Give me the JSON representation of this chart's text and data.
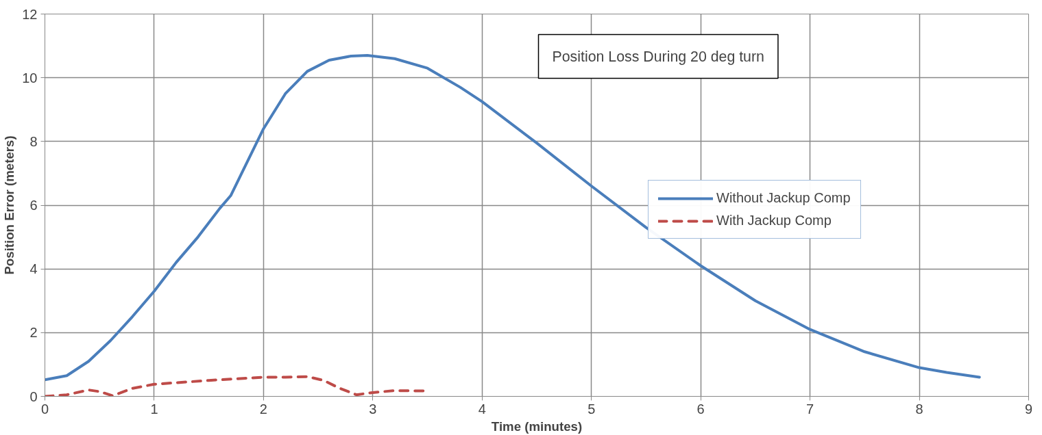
{
  "chart_data": {
    "type": "line",
    "title": "Position Loss During 20 deg turn",
    "xlabel": "Time (minutes)",
    "ylabel": "Position Error (meters)",
    "xlim": [
      0,
      9
    ],
    "xticks": [
      0,
      1,
      2,
      3,
      4,
      5,
      6,
      7,
      8,
      9
    ],
    "ylim": [
      0,
      12
    ],
    "yticks": [
      0,
      2,
      4,
      6,
      8,
      10,
      12
    ],
    "grid": true,
    "legend": "right",
    "series": [
      {
        "name": "Without Jackup Comp",
        "color": "#4a7ebb",
        "line_style": "solid",
        "x": [
          0,
          0.2,
          0.4,
          0.6,
          0.8,
          1,
          1.2,
          1.4,
          1.6,
          1.7,
          1.8,
          2,
          2.2,
          2.4,
          2.6,
          2.8,
          2.95,
          3.2,
          3.5,
          3.8,
          4,
          4.5,
          5,
          5.5,
          6,
          6.5,
          7,
          7.5,
          8,
          8.25,
          8.55
        ],
        "values": [
          0.52,
          0.65,
          1.1,
          1.75,
          2.5,
          3.3,
          4.2,
          5.0,
          5.9,
          6.3,
          7.0,
          8.4,
          9.5,
          10.2,
          10.55,
          10.68,
          10.7,
          10.6,
          10.3,
          9.7,
          9.25,
          7.95,
          6.6,
          5.3,
          4.1,
          3.0,
          2.1,
          1.4,
          0.9,
          0.75,
          0.6
        ]
      },
      {
        "name": "With Jackup Comp",
        "color": "#be4b48",
        "line_style": "dashed",
        "x": [
          0,
          0.2,
          0.4,
          0.5,
          0.62,
          0.8,
          1,
          1.5,
          2,
          2.2,
          2.4,
          2.55,
          2.7,
          2.85,
          3,
          3.2,
          3.5
        ],
        "values": [
          0,
          0.05,
          0.2,
          0.15,
          0.02,
          0.25,
          0.38,
          0.5,
          0.6,
          0.6,
          0.62,
          0.5,
          0.25,
          0.05,
          0.12,
          0.18,
          0.17
        ]
      }
    ]
  }
}
